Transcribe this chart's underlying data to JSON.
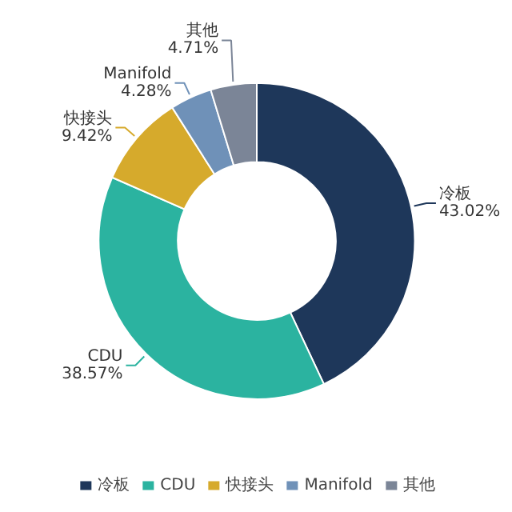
{
  "chart_data": {
    "type": "donut",
    "categories": [
      "冷板",
      "CDU",
      "快接头",
      "Manifold",
      "其他"
    ],
    "values": [
      43.02,
      38.57,
      9.42,
      4.28,
      4.71
    ],
    "colors": [
      "#1e375a",
      "#2bb3a0",
      "#d6aa2c",
      "#6f91b8",
      "#7b8597"
    ],
    "data_labels": true,
    "value_labels": [
      "43.02%",
      "38.57%",
      "9.42%",
      "4.28%",
      "4.71%"
    ],
    "legend": "bottom"
  }
}
